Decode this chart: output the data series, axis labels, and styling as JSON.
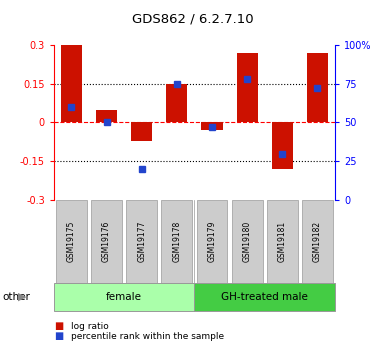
{
  "title": "GDS862 / 6.2.7.10",
  "samples": [
    "GSM19175",
    "GSM19176",
    "GSM19177",
    "GSM19178",
    "GSM19179",
    "GSM19180",
    "GSM19181",
    "GSM19182"
  ],
  "log_ratio": [
    0.3,
    0.05,
    -0.07,
    0.15,
    -0.03,
    0.27,
    -0.18,
    0.27
  ],
  "percentile_rank": [
    60,
    50,
    20,
    75,
    47,
    78,
    30,
    72
  ],
  "groups": [
    {
      "label": "female",
      "start": 0,
      "end": 4,
      "color": "#aaffaa"
    },
    {
      "label": "GH-treated male",
      "start": 4,
      "end": 8,
      "color": "#44cc44"
    }
  ],
  "ylim_left": [
    -0.3,
    0.3
  ],
  "ylim_right": [
    0,
    100
  ],
  "yticks_left": [
    -0.3,
    -0.15,
    0,
    0.15,
    0.3
  ],
  "yticks_right": [
    0,
    25,
    50,
    75,
    100
  ],
  "ytick_labels_right": [
    "0",
    "25",
    "50",
    "75",
    "100%"
  ],
  "hlines": [
    -0.15,
    0.15
  ],
  "bar_color": "#cc1100",
  "dot_color": "#2244cc",
  "bar_width": 0.6,
  "legend_log_ratio": "log ratio",
  "legend_percentile": "percentile rank within the sample",
  "other_label": "other"
}
